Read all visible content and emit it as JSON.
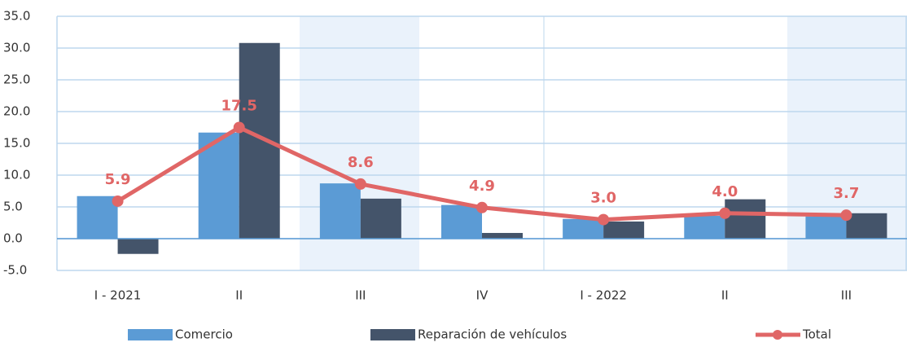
{
  "chart_data": {
    "type": "bar-line",
    "categories": [
      "I - 2021",
      "II",
      "III",
      "IV",
      "I - 2022",
      "II",
      "III"
    ],
    "series": [
      {
        "name": "Comercio",
        "color": "#5b9bd5",
        "kind": "bar",
        "values": [
          6.7,
          16.7,
          8.7,
          5.3,
          3.1,
          3.6,
          3.5
        ]
      },
      {
        "name": "Reparación de vehículos",
        "color": "#44546a",
        "kind": "bar",
        "values": [
          -2.4,
          30.8,
          6.3,
          0.9,
          2.7,
          6.2,
          4.0
        ]
      },
      {
        "name": "Total",
        "color": "#e06666",
        "kind": "line",
        "values": [
          5.9,
          17.5,
          8.6,
          4.9,
          3.0,
          4.0,
          3.7
        ],
        "value_labels": [
          "5.9",
          "17.5",
          "8.6",
          "4.9",
          "3.0",
          "4.0",
          "3.7"
        ]
      }
    ],
    "ylim": [
      -5,
      35
    ],
    "yticks": [
      {
        "value": -5,
        "label": "-5.0"
      },
      {
        "value": 0,
        "label": "0.0"
      },
      {
        "value": 5,
        "label": "5.0"
      },
      {
        "value": 10,
        "label": "10.0"
      },
      {
        "value": 15,
        "label": "15.0"
      },
      {
        "value": 20,
        "label": "20.0"
      },
      {
        "value": 25,
        "label": "25.0"
      },
      {
        "value": 30,
        "label": "30.0"
      },
      {
        "value": 35,
        "label": "35.0"
      }
    ],
    "grid": true,
    "legend": "bottom"
  }
}
